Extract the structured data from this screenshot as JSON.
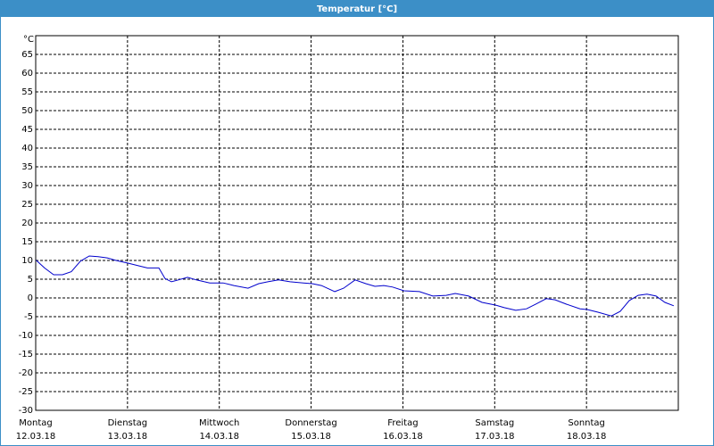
{
  "chart_data": {
    "type": "line",
    "title": "Temperatur [°C]",
    "y_unit": "°C",
    "xlim": [
      0,
      168
    ],
    "xticks": [
      {
        "value": 0,
        "label": "Montag"
      },
      {
        "value": 24,
        "label": "Dienstag"
      },
      {
        "value": 48,
        "label": "Mittwoch"
      },
      {
        "value": 72,
        "label": "Donnerstag"
      },
      {
        "value": 96,
        "label": "Freitag"
      },
      {
        "value": 120,
        "label": "Samstag"
      },
      {
        "value": 144,
        "label": "Sonntag"
      }
    ],
    "xtick_dates": [
      "12.03.18",
      "13.03.18",
      "14.03.18",
      "15.03.18",
      "16.03.18",
      "17.03.18",
      "18.03.18"
    ],
    "ylim": [
      -30,
      70
    ],
    "yticks": [
      -30,
      -25,
      -20,
      -15,
      -10,
      -5,
      0,
      5,
      10,
      15,
      20,
      25,
      30,
      35,
      40,
      45,
      50,
      55,
      60,
      65
    ],
    "grid": true,
    "series": [
      {
        "color": "#0000cc",
        "x": [
          0,
          2.3,
          4.7,
          7,
          9.3,
          11.7,
          14,
          16.3,
          18.7,
          21,
          24,
          26.8,
          29.2,
          32.2,
          33.8,
          35.5,
          37.3,
          39.7,
          42,
          45.5,
          49,
          51.8,
          55.5,
          58.3,
          60.7,
          63.5,
          66.5,
          70,
          72.3,
          74.7,
          78.2,
          80.5,
          83.5,
          86.3,
          88.7,
          91,
          93.3,
          96.3,
          100.3,
          103.8,
          107.3,
          109.7,
          113.2,
          116.7,
          120.2,
          122.5,
          125.5,
          128.3,
          130.7,
          133.5,
          135.8,
          138.8,
          142.3,
          144.2,
          147,
          150.5,
          152.8,
          155.2,
          157.5,
          159.8,
          162.2,
          164.5,
          166.8
        ],
        "values": [
          10.2,
          8,
          6.2,
          6.2,
          7,
          9.8,
          11.2,
          11,
          10.7,
          10,
          9.3,
          8.6,
          8,
          8,
          5.2,
          4.3,
          4.8,
          5.5,
          4.8,
          4,
          4,
          3.3,
          2.6,
          3.8,
          4.3,
          4.8,
          4.3,
          4,
          3.8,
          3.3,
          1.7,
          2.6,
          4.8,
          3.8,
          3.1,
          3.3,
          2.9,
          1.9,
          1.7,
          0.5,
          0.7,
          1.2,
          0.5,
          -1.2,
          -1.9,
          -2.6,
          -3.3,
          -2.9,
          -1.7,
          -0.2,
          -0.5,
          -1.7,
          -2.9,
          -3.1,
          -3.8,
          -4.8,
          -3.6,
          -0.7,
          0.7,
          1,
          0.5,
          -1.2,
          -2.1
        ]
      }
    ]
  }
}
